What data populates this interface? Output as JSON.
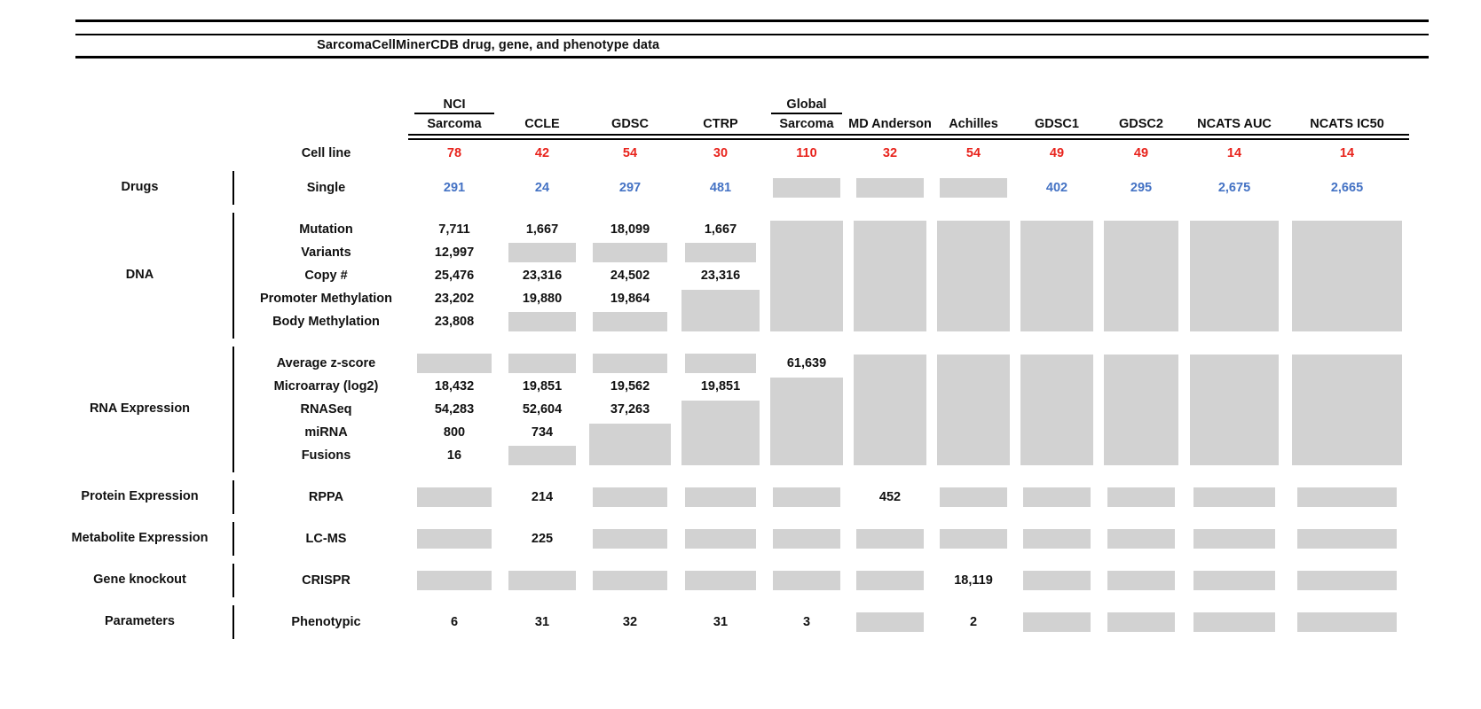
{
  "title": "SarcomaCellMinerCDB drug, gene, and phenotype data",
  "colors": {
    "cell_line_count": "#e8231c",
    "drug_count": "#4472c4",
    "missing_data_box": "#d2d2d2",
    "rules": "#000000"
  },
  "chart_data": {
    "type": "table",
    "title": "SarcomaCellMinerCDB drug, gene, and phenotype data",
    "gray_cell_meaning": "#G = gray box (no value shown), #Gn spans n rows, empty string = covered by a spanned gray box",
    "columns": [
      {
        "top": "NCI",
        "label": "Sarcoma"
      },
      {
        "label": "CCLE"
      },
      {
        "label": "GDSC"
      },
      {
        "label": "CTRP"
      },
      {
        "top": "Global",
        "label": "Sarcoma"
      },
      {
        "label": "MD Anderson"
      },
      {
        "label": "Achilles"
      },
      {
        "label": "GDSC1"
      },
      {
        "label": "GDSC2"
      },
      {
        "label": "NCATS AUC"
      },
      {
        "label": "NCATS IC50"
      }
    ],
    "sections": [
      {
        "category": "",
        "bar": false,
        "value_color": "red",
        "rows": [
          {
            "label": "Cell line",
            "cells": [
              "78",
              "42",
              "54",
              "30",
              "110",
              "32",
              "54",
              "49",
              "49",
              "14",
              "14"
            ]
          }
        ]
      },
      {
        "category": "Drugs",
        "bar": true,
        "value_color": "blue",
        "rows": [
          {
            "label": "Single",
            "cells": [
              "291",
              "24",
              "297",
              "481",
              "#G",
              "#G",
              "#G",
              "402",
              "295",
              "2,675",
              "2,665"
            ]
          }
        ]
      },
      {
        "category": "DNA",
        "bar": true,
        "value_color": "black",
        "rows": [
          {
            "label": "Mutation",
            "cells": [
              "7,711",
              "1,667",
              "18,099",
              "1,667",
              "#G5",
              "#G5",
              "#G5",
              "#G5",
              "#G5",
              "#G5",
              "#G5"
            ]
          },
          {
            "label": "Variants",
            "cells": [
              "12,997",
              "#G",
              "#G",
              "#G",
              "",
              "",
              "",
              "",
              "",
              "",
              ""
            ]
          },
          {
            "label": "Copy #",
            "cells": [
              "25,476",
              "23,316",
              "24,502",
              "23,316",
              "",
              "",
              "",
              "",
              "",
              "",
              ""
            ]
          },
          {
            "label": "Promoter Methylation",
            "cells": [
              "23,202",
              "19,880",
              "19,864",
              "#G2",
              "",
              "",
              "",
              "",
              "",
              "",
              ""
            ]
          },
          {
            "label": "Body Methylation",
            "cells": [
              "23,808",
              "#G",
              "#G",
              "",
              "",
              "",
              "",
              "",
              "",
              "",
              ""
            ]
          }
        ]
      },
      {
        "category": "RNA Expression",
        "bar": true,
        "value_color": "black",
        "rows": [
          {
            "label": "Average z-score",
            "cells": [
              "#G",
              "#G",
              "#G",
              "#G",
              "61,639",
              "#G5",
              "#G5",
              "#G5",
              "#G5",
              "#G5",
              "#G5"
            ]
          },
          {
            "label": "Microarray (log2)",
            "cells": [
              "18,432",
              "19,851",
              "19,562",
              "19,851",
              "#G4",
              "",
              "",
              "",
              "",
              "",
              ""
            ]
          },
          {
            "label": "RNASeq",
            "cells": [
              "54,283",
              "52,604",
              "37,263",
              "#G3",
              "",
              "",
              "",
              "",
              "",
              "",
              ""
            ]
          },
          {
            "label": "miRNA",
            "cells": [
              "800",
              "734",
              "#G2",
              "",
              "",
              "",
              "",
              "",
              "",
              "",
              ""
            ]
          },
          {
            "label": "Fusions",
            "cells": [
              "16",
              "#G",
              "",
              "",
              "",
              "",
              "",
              "",
              "",
              "",
              ""
            ]
          }
        ]
      },
      {
        "category": "Protein Expression",
        "bar": true,
        "value_color": "black",
        "rows": [
          {
            "label": "RPPA",
            "cells": [
              "#G",
              "214",
              "#G",
              "#G",
              "#G",
              "452",
              "#G",
              "#G",
              "#G",
              "#G",
              "#G"
            ]
          }
        ]
      },
      {
        "category": "Metabolite Expression",
        "bar": true,
        "value_color": "black",
        "rows": [
          {
            "label": "LC-MS",
            "cells": [
              "#G",
              "225",
              "#G",
              "#G",
              "#G",
              "#G",
              "#G",
              "#G",
              "#G",
              "#G",
              "#G"
            ]
          }
        ]
      },
      {
        "category": "Gene knockout",
        "bar": true,
        "value_color": "black",
        "rows": [
          {
            "label": "CRISPR",
            "cells": [
              "#G",
              "#G",
              "#G",
              "#G",
              "#G",
              "#G",
              "18,119",
              "#G",
              "#G",
              "#G",
              "#G"
            ]
          }
        ]
      },
      {
        "category": "Parameters",
        "bar": true,
        "value_color": "black",
        "rows": [
          {
            "label": "Phenotypic",
            "cells": [
              "6",
              "31",
              "32",
              "31",
              "3",
              "#G",
              "2",
              "#G",
              "#G",
              "#G",
              "#G"
            ]
          }
        ]
      }
    ]
  }
}
